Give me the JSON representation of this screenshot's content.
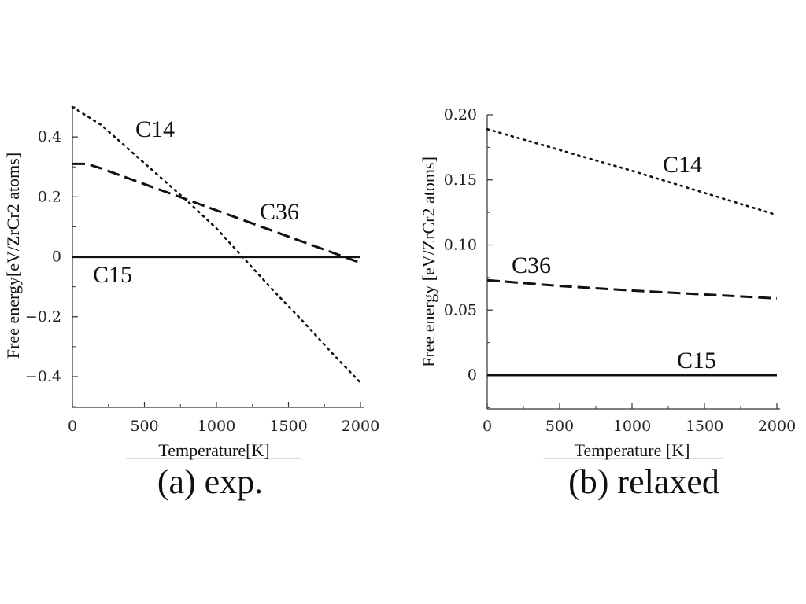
{
  "chart_data": [
    {
      "type": "line",
      "caption": "(a) exp.",
      "xlabel": "Temperature[K]",
      "ylabel": "Free energy[eV/ZrCr2 atoms]",
      "xlim": [
        0,
        2000
      ],
      "ylim": [
        -0.5,
        0.5
      ],
      "xticks": [
        0,
        500,
        1000,
        1500,
        2000
      ],
      "xtick_labels": [
        "0",
        "500",
        "1000",
        "1500",
        "2000"
      ],
      "yticks": [
        -0.4,
        -0.2,
        0,
        0.2,
        0.4
      ],
      "ytick_labels": [
        "−0.4",
        "−0.2",
        "0",
        "0.2",
        "0.4"
      ],
      "grid": false,
      "series": [
        {
          "name": "C14",
          "style": "dotted",
          "x": [
            0,
            200,
            400,
            600,
            800,
            1000,
            1200,
            1400,
            1600,
            1800,
            2000
          ],
          "y": [
            0.5,
            0.44,
            0.355,
            0.27,
            0.185,
            0.095,
            -0.01,
            -0.115,
            -0.215,
            -0.32,
            -0.42
          ]
        },
        {
          "name": "C36",
          "style": "dashed",
          "x": [
            0,
            100,
            200,
            400,
            600,
            800,
            1000,
            1200,
            1400,
            1600,
            1800,
            2000
          ],
          "y": [
            0.31,
            0.31,
            0.295,
            0.26,
            0.225,
            0.19,
            0.155,
            0.12,
            0.085,
            0.05,
            0.015,
            -0.02
          ]
        },
        {
          "name": "C15",
          "style": "solid",
          "x": [
            0,
            2000
          ],
          "y": [
            0,
            0
          ]
        }
      ]
    },
    {
      "type": "line",
      "caption": "(b) relaxed",
      "xlabel": "Temperature [K]",
      "ylabel": "Free energy [eV/ZrCr2 atoms]",
      "xlim": [
        0,
        2000
      ],
      "ylim": [
        -0.027,
        0.2
      ],
      "xticks": [
        0,
        500,
        1000,
        1500,
        2000
      ],
      "xtick_labels": [
        "0",
        "500",
        "1000",
        "1500",
        "2000"
      ],
      "yticks": [
        0,
        0.05,
        0.1,
        0.15,
        0.2
      ],
      "ytick_labels": [
        "0",
        "0.05",
        "0.10",
        "0.15",
        "0.20"
      ],
      "grid": false,
      "series": [
        {
          "name": "C14",
          "style": "dotted",
          "x": [
            0,
            500,
            1000,
            1500,
            2000
          ],
          "y": [
            0.189,
            0.173,
            0.157,
            0.14,
            0.123
          ]
        },
        {
          "name": "C36",
          "style": "dashed",
          "x": [
            0,
            500,
            1000,
            1500,
            2000
          ],
          "y": [
            0.073,
            0.0685,
            0.065,
            0.062,
            0.059
          ]
        },
        {
          "name": "C15",
          "style": "solid",
          "x": [
            0,
            2000
          ],
          "y": [
            0,
            0
          ]
        }
      ]
    }
  ]
}
